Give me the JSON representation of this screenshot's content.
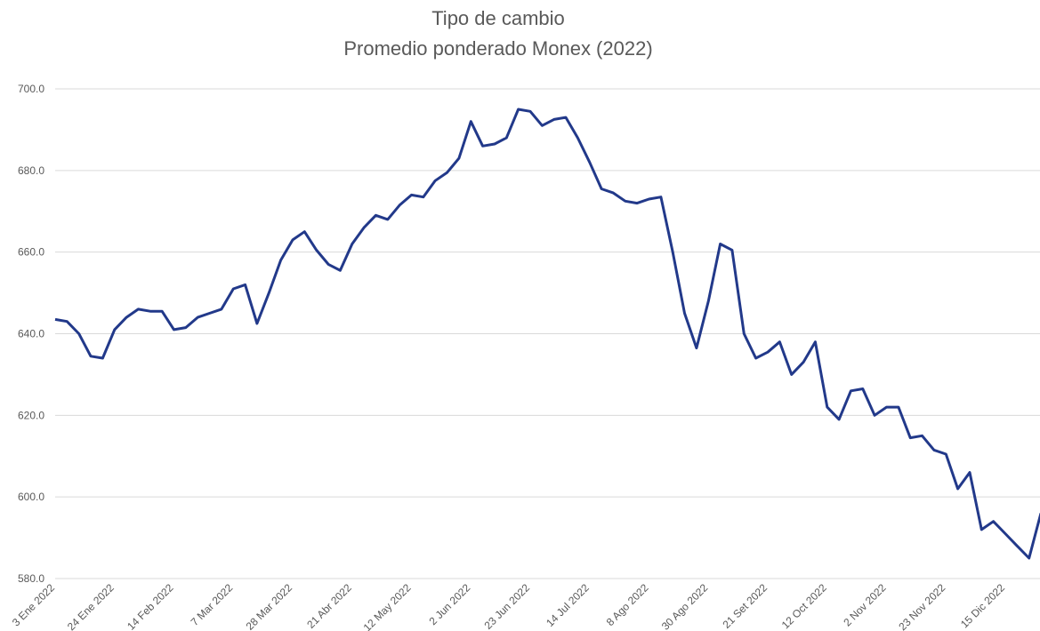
{
  "chart_data": {
    "type": "line",
    "title": "Tipo de cambio",
    "subtitle": "Promedio ponderado Monex (2022)",
    "categories": [
      "3 Ene 2022",
      null,
      null,
      null,
      null,
      "24 Ene 2022",
      null,
      null,
      null,
      null,
      "14 Feb 2022",
      null,
      null,
      null,
      null,
      "7 Mar 2022",
      null,
      null,
      null,
      null,
      "28 Mar 2022",
      null,
      null,
      null,
      null,
      "21 Abr 2022",
      null,
      null,
      null,
      null,
      "12 May 2022",
      null,
      null,
      null,
      null,
      "2 Jun 2022",
      null,
      null,
      null,
      null,
      "23 Jun 2022",
      null,
      null,
      null,
      null,
      "14 Jul 2022",
      null,
      null,
      null,
      null,
      "8 Ago 2022",
      null,
      null,
      null,
      null,
      "30 Ago 2022",
      null,
      null,
      null,
      null,
      "21 Set 2022",
      null,
      null,
      null,
      null,
      "12 Oct 2022",
      null,
      null,
      null,
      null,
      "2 Nov 2022",
      null,
      null,
      null,
      null,
      "23 Nov 2022",
      null,
      null,
      null,
      null,
      "15 Dic 2022",
      null,
      null,
      null
    ],
    "series": [
      {
        "name": "Promedio ponderado Monex",
        "color": "#22398a",
        "values": [
          643.5,
          643,
          640,
          634.5,
          634,
          641,
          644,
          646,
          645.5,
          645.5,
          641,
          641.5,
          644,
          645,
          646,
          651,
          652,
          642.5,
          650,
          658,
          663,
          665,
          660.5,
          657,
          655.5,
          662,
          666,
          669,
          668,
          671.5,
          674,
          673.5,
          677.5,
          679.5,
          683,
          692,
          686,
          686.5,
          688,
          695,
          694.5,
          691,
          692.5,
          693,
          688,
          682,
          675.5,
          674.5,
          672.5,
          672,
          673,
          673.5,
          660,
          645,
          636.5,
          648,
          662,
          660.5,
          640,
          634,
          635.5,
          638,
          630,
          633,
          638,
          622,
          619,
          626,
          626.5,
          620,
          622,
          622,
          614.5,
          615,
          611.5,
          610.5,
          602,
          606,
          592,
          594,
          591,
          588,
          585,
          596
        ]
      }
    ],
    "ylim": [
      580,
      700
    ],
    "yticks": [
      {
        "value": 580,
        "label": "580.0"
      },
      {
        "value": 600,
        "label": "600.0"
      },
      {
        "value": 620,
        "label": "620.0"
      },
      {
        "value": 640,
        "label": "640.0"
      },
      {
        "value": 660,
        "label": "660.0"
      },
      {
        "value": 680,
        "label": "680.0"
      },
      {
        "value": 700,
        "label": "700.0"
      }
    ],
    "grid": true
  }
}
